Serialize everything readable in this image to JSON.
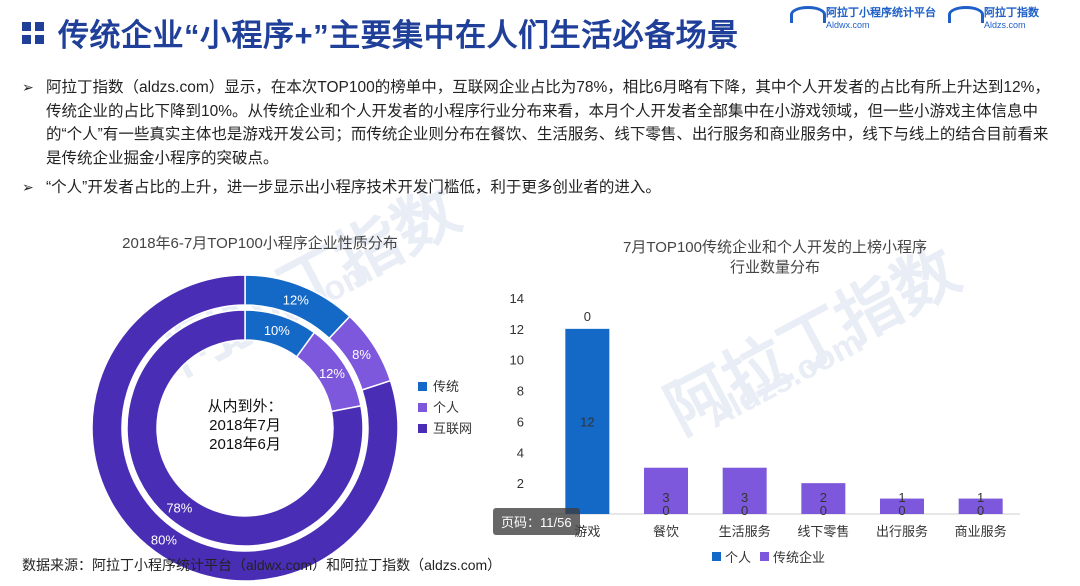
{
  "page": {
    "title": "传统企业“小程序+”主要集中在人们生活必备场景",
    "logo_left": {
      "name": "阿拉丁小程序统计平台",
      "url": "Aldwx.com"
    },
    "logo_right": {
      "name": "阿拉丁指数",
      "url": "Aldzs.com"
    },
    "bullets": [
      "阿拉丁指数（aldzs.com）显示，在本次TOP100的榜单中，互联网企业占比为78%，相比6月略有下降，其中个人开发者的占比有所上升达到12%，传统企业的占比下降到10%。从传统企业和个人开发者的小程序行业分布来看，本月个人开发者全部集中在小游戏领域，但一些小游戏主体信息中的“个人”有一些真实主体也是游戏开发公司；而传统企业则分布在餐饮、生活服务、线下零售、出行服务和商业服务中，线下与线上的结合目前看来是传统企业掘金小程序的突破点。",
      "“个人”开发者占比的上升，进一步显示出小程序技术开发门槛低，利于更多创业者的进入。"
    ],
    "bullet_marker": "➢",
    "source": "数据来源：阿拉丁小程序统计平台（aldwx.com）和阿拉丁指数（aldzs.com）",
    "page_badge": "页码：11/56",
    "watermarks": [
      "阿拉丁指数",
      "Aldzs.com",
      "阿拉丁指数",
      "Aldzs.com"
    ]
  },
  "chart_data": [
    {
      "type": "pie",
      "subtype": "doughnut",
      "title": "2018年6-7月TOP100小程序企业性质分布",
      "center_label": [
        "从内到外：",
        "2018年7月",
        "2018年6月"
      ],
      "categories": [
        "传统",
        "个人",
        "互联网"
      ],
      "colors": [
        "#1469c7",
        "#7d58dc",
        "#4a2db5"
      ],
      "series": [
        {
          "name": "2018年7月",
          "values": [
            10,
            12,
            78
          ],
          "labels": [
            "10%",
            "12%",
            "78%"
          ]
        },
        {
          "name": "2018年6月",
          "values": [
            12,
            8,
            80
          ],
          "labels": [
            "12%",
            "8%",
            "80%"
          ]
        }
      ],
      "legend": "right"
    },
    {
      "type": "bar",
      "title": [
        "7月TOP100传统企业和个人开发的上榜小程序",
        "行业数量分布"
      ],
      "categories": [
        "游戏",
        "餐饮",
        "生活服务",
        "线下零售",
        "出行服务",
        "商业服务"
      ],
      "series": [
        {
          "name": "个人",
          "color": "#1469c7",
          "values": [
            12,
            0,
            0,
            0,
            0,
            0
          ]
        },
        {
          "name": "传统企业",
          "color": "#7d58dc",
          "values": [
            0,
            3,
            3,
            2,
            1,
            1
          ]
        }
      ],
      "ylim": [
        0,
        14
      ],
      "yticks": [
        2,
        4,
        6,
        8,
        10,
        12,
        14
      ],
      "legend": "bottom"
    }
  ]
}
